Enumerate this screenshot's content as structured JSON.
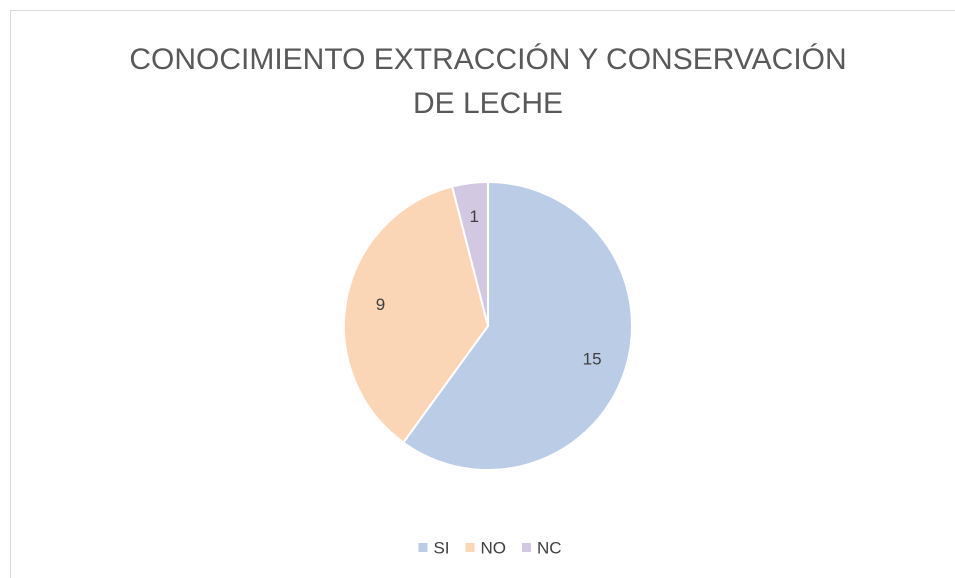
{
  "chart_data": {
    "type": "pie",
    "title": "CONOCIMIENTO EXTRACCIÓN Y CONSERVACIÓN DE LECHE",
    "categories": [
      "SI",
      "NO",
      "NC"
    ],
    "values": [
      15,
      9,
      1
    ],
    "colors": [
      "#bacce6",
      "#fbd6b6",
      "#d3c8e2"
    ],
    "legend": "bottom"
  }
}
